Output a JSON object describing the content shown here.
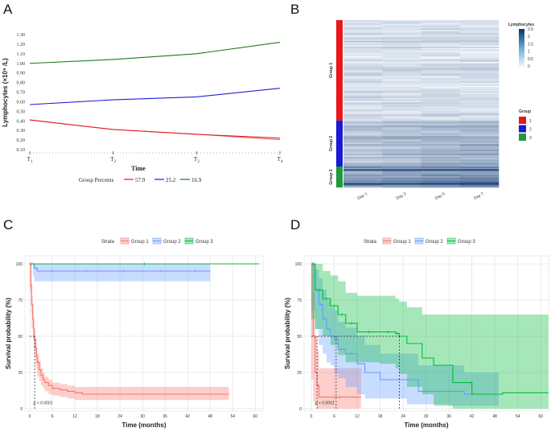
{
  "panels": {
    "a": "A",
    "b": "B",
    "c": "C",
    "d": "D"
  },
  "chart_data": [
    {
      "id": "A",
      "type": "line",
      "xlabel": "Time",
      "ylabel": "Lymphocytes (×10⁹ /L)",
      "categories": [
        "T1",
        "T2",
        "T3",
        "T4"
      ],
      "yticks": [
        "0.10",
        "0.20",
        "0.30",
        "0.40",
        "0.50",
        "0.60",
        "0.70",
        "0.80",
        "0.90",
        "1.00",
        "1.10",
        "1.20",
        "1.30"
      ],
      "ylim": [
        0.1,
        1.3
      ],
      "legend_title": "Group Percents",
      "series": [
        {
          "name": "57.9",
          "color": "#e41a1c",
          "values": [
            0.41,
            0.31,
            0.26,
            0.22
          ]
        },
        {
          "name": "25.2",
          "color": "#1f1fd6",
          "values": [
            0.57,
            0.62,
            0.65,
            0.74
          ]
        },
        {
          "name": "16.9",
          "color": "#1a7a1a",
          "values": [
            1.0,
            1.04,
            1.1,
            1.22
          ]
        }
      ]
    },
    {
      "id": "B",
      "type": "heatmap",
      "columns": [
        "Day 1",
        "Day 3",
        "Day 5",
        "Day 7"
      ],
      "row_groups": [
        "Group 1",
        "Group 2",
        "Group 3"
      ],
      "legend_title": "Lymphocytes",
      "colorbar_ticks": [
        "2.5",
        "2",
        "1.5",
        "1",
        "0.5",
        "0"
      ],
      "group_legend_title": "Group",
      "group_legend": [
        {
          "label": "1",
          "color": "#e8171b"
        },
        {
          "label": "2",
          "color": "#1a1ad4"
        },
        {
          "label": "3",
          "color": "#1e9a3a"
        }
      ]
    },
    {
      "id": "C",
      "type": "line",
      "subtype": "kaplan-meier",
      "legend_title": "Strata",
      "xlabel": "Time (months)",
      "ylabel": "Survival probability (%)",
      "xticks": [
        "0",
        "6",
        "12",
        "18",
        "24",
        "30",
        "36",
        "42",
        "48",
        "54",
        "60"
      ],
      "yticks": [
        "0",
        "25",
        "50",
        "75",
        "100"
      ],
      "xlim": [
        0,
        61
      ],
      "ylim": [
        0,
        100
      ],
      "pvalue": "p < 0.0001",
      "series": [
        {
          "name": "Group 1",
          "color": "#f8766d",
          "x": [
            0,
            0.3,
            0.5,
            0.8,
            1.0,
            1.2,
            1.5,
            1.8,
            2,
            2.5,
            3,
            3.5,
            4,
            5,
            6,
            8,
            10,
            12,
            14,
            16,
            20,
            30,
            40,
            53
          ],
          "y": [
            100,
            85,
            72,
            62,
            55,
            48,
            42,
            36,
            32,
            27,
            23,
            20,
            18,
            16,
            14,
            13,
            12,
            11,
            10,
            10,
            10,
            10,
            10,
            10
          ],
          "lower": [
            100,
            80,
            66,
            56,
            49,
            42,
            36,
            30,
            27,
            22,
            19,
            16,
            14,
            12,
            10,
            9,
            8,
            7,
            6,
            6,
            6,
            6,
            6,
            6
          ],
          "upper": [
            100,
            90,
            78,
            68,
            61,
            54,
            48,
            42,
            38,
            33,
            28,
            25,
            22,
            20,
            18,
            17,
            16,
            15,
            15,
            15,
            15,
            15,
            15,
            15
          ]
        },
        {
          "name": "Group 2",
          "color": "#619cff",
          "x": [
            0,
            0.8,
            1.2,
            2,
            10,
            20,
            30,
            40,
            48
          ],
          "y": [
            100,
            100,
            97,
            95,
            95,
            95,
            95,
            95,
            95
          ],
          "lower": [
            100,
            100,
            92,
            88,
            88,
            88,
            88,
            88,
            88
          ],
          "upper": [
            100,
            100,
            100,
            100,
            100,
            100,
            100,
            100,
            100
          ]
        },
        {
          "name": "Group 3",
          "color": "#00ba38",
          "x": [
            0,
            61
          ],
          "y": [
            100,
            100
          ]
        }
      ],
      "median_x": 1.3
    },
    {
      "id": "D",
      "type": "line",
      "subtype": "kaplan-meier",
      "legend_title": "Strata",
      "xlabel": "Time (months)",
      "ylabel": "Survival probability (%)",
      "xticks": [
        "0",
        "6",
        "12",
        "18",
        "24",
        "30",
        "36",
        "42",
        "48",
        "54",
        "60"
      ],
      "yticks": [
        "0",
        "25",
        "50",
        "75",
        "100"
      ],
      "xlim": [
        0,
        61
      ],
      "ylim": [
        0,
        100
      ],
      "pvalue": "p < 0.0001",
      "series": [
        {
          "name": "Group 1",
          "color": "#f8766d",
          "x": [
            0,
            0.5,
            1,
            1.5,
            2,
            13
          ],
          "y": [
            100,
            50,
            25,
            16,
            8,
            8
          ],
          "lower": [
            100,
            20,
            5,
            2,
            0,
            0
          ],
          "upper": [
            100,
            80,
            50,
            40,
            28,
            28
          ]
        },
        {
          "name": "Group 2",
          "color": "#619cff",
          "x": [
            0,
            1,
            2,
            3,
            4,
            5,
            6,
            7,
            9,
            12,
            14,
            18,
            21,
            25,
            28,
            30,
            36,
            40,
            49
          ],
          "y": [
            100,
            82,
            72,
            62,
            55,
            50,
            48,
            41,
            38,
            31,
            25,
            20,
            20,
            20,
            12,
            12,
            12,
            10,
            10
          ],
          "lower": [
            100,
            68,
            55,
            44,
            38,
            32,
            30,
            24,
            21,
            15,
            10,
            7,
            7,
            7,
            3,
            3,
            3,
            2,
            2
          ],
          "upper": [
            100,
            96,
            90,
            82,
            75,
            70,
            68,
            60,
            56,
            50,
            44,
            38,
            38,
            38,
            30,
            30,
            30,
            25,
            25
          ]
        },
        {
          "name": "Group 3",
          "color": "#00ba38",
          "x": [
            0,
            1,
            3,
            5,
            7,
            9,
            12,
            18,
            22,
            23,
            25,
            29,
            32,
            37,
            42,
            50,
            62
          ],
          "y": [
            100,
            82,
            76,
            71,
            65,
            59,
            53,
            53,
            52,
            50,
            45,
            35,
            30,
            18,
            10,
            11,
            11
          ],
          "lower": [
            100,
            62,
            55,
            50,
            44,
            37,
            32,
            32,
            31,
            28,
            24,
            15,
            10,
            2,
            0,
            0,
            0
          ],
          "upper": [
            100,
            100,
            95,
            92,
            88,
            80,
            78,
            78,
            76,
            74,
            70,
            65,
            65,
            65,
            65,
            65,
            65
          ]
        }
      ],
      "median_lines_x": [
        1.5,
        6.5,
        23
      ]
    }
  ]
}
